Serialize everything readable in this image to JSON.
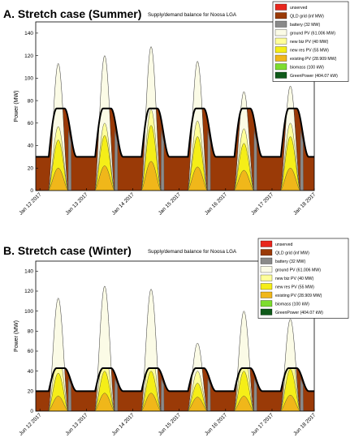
{
  "charts": [
    {
      "panel_label": "A. Stretch case (Summer)",
      "title": "Supply/demand balance for Noosa LGA",
      "ylabel": "Power (MW)",
      "ylim": [
        0,
        150
      ],
      "yticks": [
        0,
        20,
        40,
        60,
        80,
        100,
        120,
        140
      ],
      "xticks": [
        "Jan 12 2017",
        "Jan 13 2017",
        "Jan 14 2017",
        "Jan 15 2017",
        "Jan 16 2017",
        "Jan 17 2017",
        "Jan 18 2017"
      ],
      "legend": [
        {
          "label": "unserved",
          "color": "#e8261d"
        },
        {
          "label": "QLD grid (inf MW)",
          "color": "#9a3a07"
        },
        {
          "label": "battery (32 MW)",
          "color": "#8a8a8a"
        },
        {
          "label": "ground PV (61.006 MW)",
          "color": "#fbfbe6"
        },
        {
          "label": "new biz PV (40 MW)",
          "color": "#ffff99"
        },
        {
          "label": "new res PV (55 MW)",
          "color": "#f5ee18"
        },
        {
          "label": "existing PV (28.909 MW)",
          "color": "#f0b71a"
        },
        {
          "label": "biomass (100 kW)",
          "color": "#7ddd2e"
        },
        {
          "label": "GreenPower (404.07 kW)",
          "color": "#0f5a1a"
        }
      ],
      "chart_data": {
        "type": "area",
        "demand_trough": 30,
        "demand_peak": 73,
        "pv_daily_peaks": {
          "ground_pv_top": [
            113,
            120,
            128,
            115,
            88,
            93
          ],
          "new_biz_top": [
            57,
            60,
            72,
            62,
            55,
            60
          ],
          "new_res_top": [
            45,
            49,
            58,
            48,
            42,
            48
          ],
          "existing_pv_top": [
            20,
            22,
            26,
            21,
            18,
            20
          ]
        }
      }
    },
    {
      "panel_label": "B. Stretch case (Winter)",
      "title": "Supply/demand balance for Noosa LGA",
      "ylabel": "Power (MW)",
      "ylim": [
        0,
        150
      ],
      "yticks": [
        0,
        20,
        40,
        60,
        80,
        100,
        120,
        140
      ],
      "xticks": [
        "Jun 12 2017",
        "Jun 13 2017",
        "Jun 14 2017",
        "Jun 15 2017",
        "Jun 16 2017",
        "Jun 17 2017",
        "Jun 18 2017"
      ],
      "legend": [
        {
          "label": "unserved",
          "color": "#e8261d"
        },
        {
          "label": "QLD grid (inf MW)",
          "color": "#9a3a07"
        },
        {
          "label": "battery (32 MW)",
          "color": "#8a8a8a"
        },
        {
          "label": "ground PV (61.006 MW)",
          "color": "#fbfbe6"
        },
        {
          "label": "new biz PV (40 MW)",
          "color": "#ffff99"
        },
        {
          "label": "new res PV (55 MW)",
          "color": "#f5ee18"
        },
        {
          "label": "existing PV (28.909 MW)",
          "color": "#f0b71a"
        },
        {
          "label": "biomass (100 kW)",
          "color": "#7ddd2e"
        },
        {
          "label": "GreenPower (404.07 kW)",
          "color": "#0f5a1a"
        }
      ],
      "chart_data": {
        "type": "area",
        "demand_trough": 20,
        "demand_peak": 43,
        "pv_daily_peaks": {
          "ground_pv_top": [
            113,
            125,
            122,
            68,
            100,
            92
          ],
          "new_biz_top": [
            60,
            62,
            62,
            40,
            62,
            65
          ],
          "new_res_top": [
            38,
            40,
            40,
            28,
            40,
            42
          ],
          "existing_pv_top": [
            15,
            18,
            18,
            14,
            15,
            16
          ]
        }
      }
    }
  ]
}
